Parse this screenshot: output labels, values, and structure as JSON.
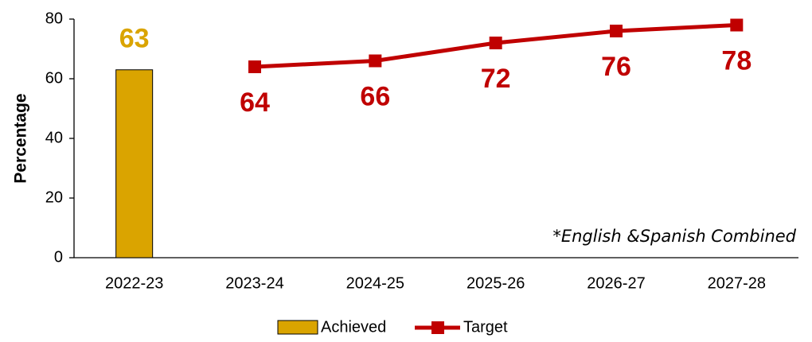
{
  "chart_data": {
    "type": "combo",
    "y_label": "Percentage",
    "annotation": "*English &Spanish Combined",
    "categories": [
      "2022-23",
      "2023-24",
      "2024-25",
      "2025-26",
      "2026-27",
      "2027-28"
    ],
    "series": [
      {
        "name": "Achieved",
        "type": "bar",
        "color": "#daa400",
        "values": [
          63,
          null,
          null,
          null,
          null,
          null
        ]
      },
      {
        "name": "Target",
        "type": "line",
        "color": "#c00000",
        "values": [
          null,
          64,
          66,
          72,
          76,
          78
        ]
      }
    ],
    "ylim": [
      0,
      80
    ],
    "yticks": [
      0,
      20,
      40,
      60,
      80
    ],
    "grid": false
  }
}
